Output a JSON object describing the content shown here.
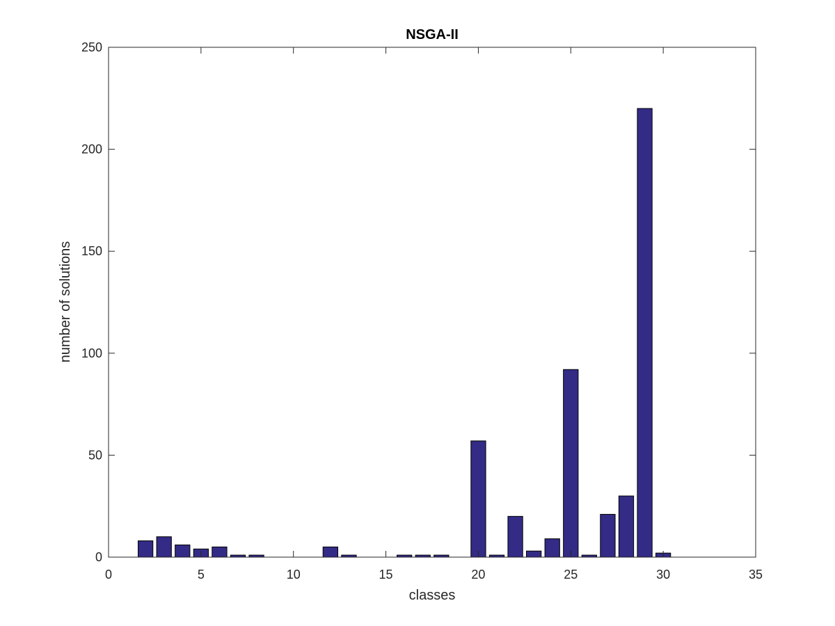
{
  "chart_data": {
    "type": "bar",
    "title": "NSGA-II",
    "xlabel": "classes",
    "ylabel": "number of solutions",
    "xlim": [
      0,
      35
    ],
    "ylim": [
      0,
      250
    ],
    "xticks": [
      0,
      5,
      10,
      15,
      20,
      25,
      30,
      35
    ],
    "yticks": [
      0,
      50,
      100,
      150,
      200,
      250
    ],
    "grid": false,
    "bar_color": "#332b85",
    "edge_color": "#000000",
    "x": [
      2,
      3,
      4,
      5,
      6,
      7,
      8,
      12,
      13,
      16,
      17,
      18,
      20,
      21,
      22,
      23,
      24,
      25,
      26,
      27,
      28,
      29,
      30
    ],
    "values": [
      8,
      10,
      6,
      4,
      5,
      1,
      1,
      5,
      1,
      1,
      1,
      1,
      57,
      1,
      20,
      3,
      9,
      92,
      1,
      21,
      30,
      220,
      2
    ]
  }
}
